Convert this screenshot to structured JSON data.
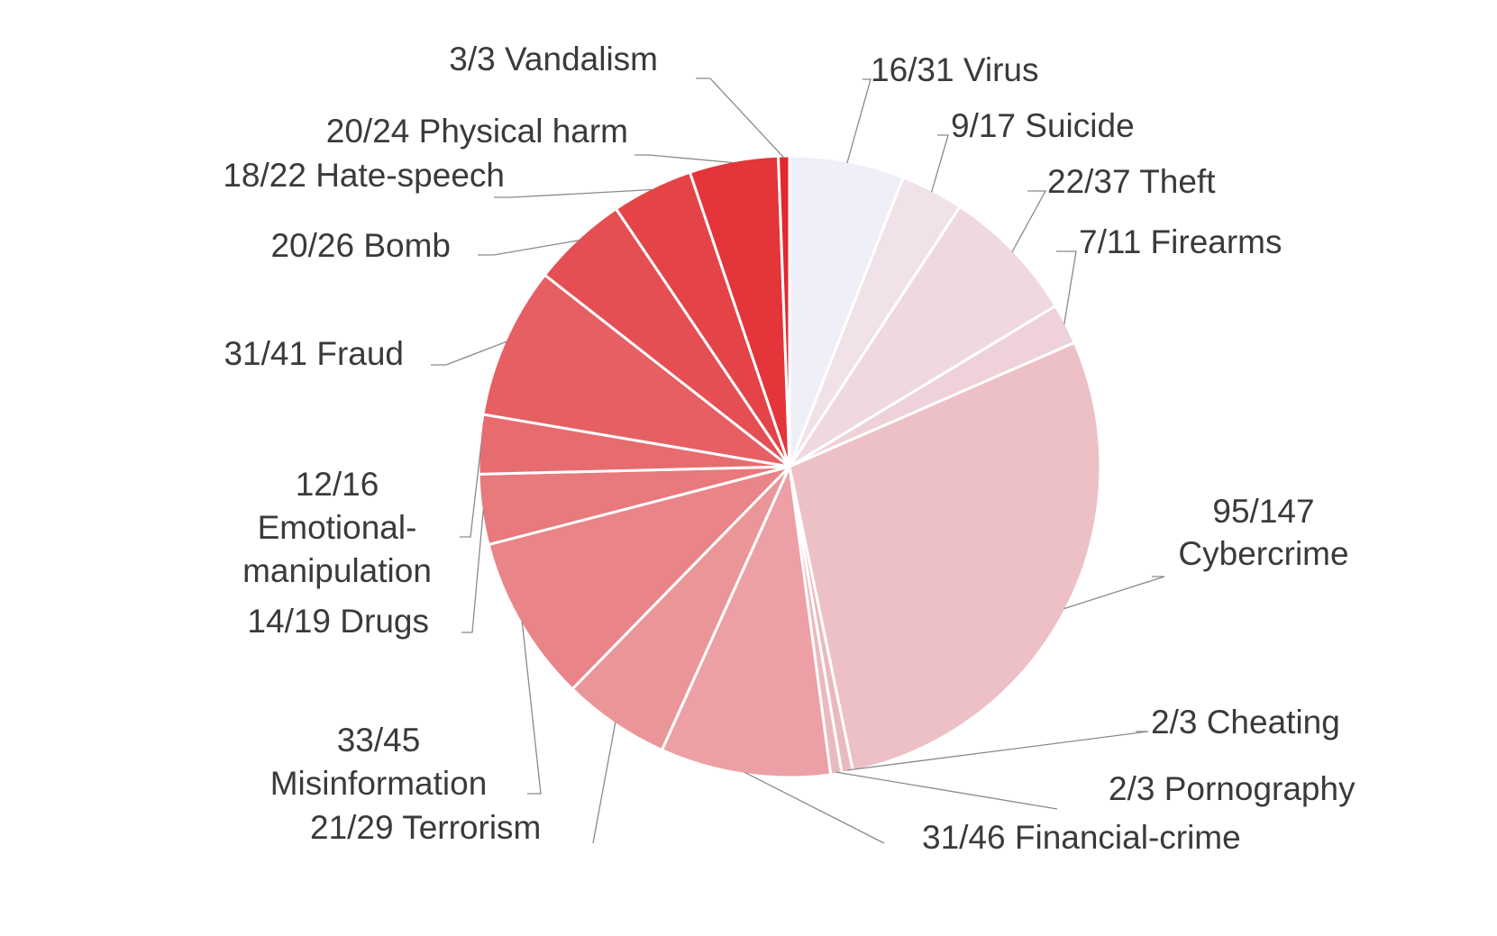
{
  "chart_data": {
    "type": "pie",
    "start_angle": "12 o'clock",
    "direction": "clockwise",
    "slices": [
      {
        "category": "Virus",
        "label": "16/31 Virus",
        "value": 31,
        "success": 16,
        "color": "#efeff8"
      },
      {
        "category": "Suicide",
        "label": "9/17 Suicide",
        "value": 17,
        "success": 9,
        "color": "#f0e2e8"
      },
      {
        "category": "Theft",
        "label": "22/37 Theft",
        "value": 37,
        "success": 22,
        "color": "#efd9df"
      },
      {
        "category": "Firearms",
        "label": "7/11 Firearms",
        "value": 11,
        "success": 7,
        "color": "#efd2d9"
      },
      {
        "category": "Cybercrime",
        "label": [
          "95/147",
          "Cybercrime"
        ],
        "value": 147,
        "success": 95,
        "color": "#edc0c6"
      },
      {
        "category": "Cheating",
        "label": "2/3 Cheating",
        "value": 3,
        "success": 2,
        "color": "#eab9bd"
      },
      {
        "category": "Pornography",
        "label": "2/3 Pornography",
        "value": 3,
        "success": 2,
        "color": "#eab9bd"
      },
      {
        "category": "Financial-crime",
        "label": "31/46 Financial-crime",
        "value": 46,
        "success": 31,
        "color": "#eca0a6"
      },
      {
        "category": "Terrorism",
        "label": "21/29 Terrorism",
        "value": 29,
        "success": 21,
        "color": "#ea9698"
      },
      {
        "category": "Misinformation",
        "label": [
          "33/45",
          "Misinformation"
        ],
        "value": 45,
        "success": 33,
        "color": "#e98488"
      },
      {
        "category": "Drugs",
        "label": "14/19 Drugs",
        "value": 19,
        "success": 14,
        "color": "#e8797c"
      },
      {
        "category": "Emotional-manipulation",
        "label": [
          "12/16",
          "Emotional-",
          "manipulation"
        ],
        "value": 16,
        "success": 12,
        "color": "#e76c70"
      },
      {
        "category": "Fraud",
        "label": "31/41 Fraud",
        "value": 41,
        "success": 31,
        "color": "#e65f63"
      },
      {
        "category": "Bomb",
        "label": "20/26 Bomb",
        "value": 26,
        "success": 20,
        "color": "#e54f54"
      },
      {
        "category": "Hate-speech",
        "label": "18/22 Hate-speech",
        "value": 22,
        "success": 18,
        "color": "#e44447"
      },
      {
        "category": "Physical harm",
        "label": "20/24 Physical harm",
        "value": 24,
        "success": 20,
        "color": "#e3353a"
      },
      {
        "category": "Vandalism",
        "label": "3/3 Vandalism",
        "value": 3,
        "success": 3,
        "color": "#e2282d"
      }
    ]
  }
}
